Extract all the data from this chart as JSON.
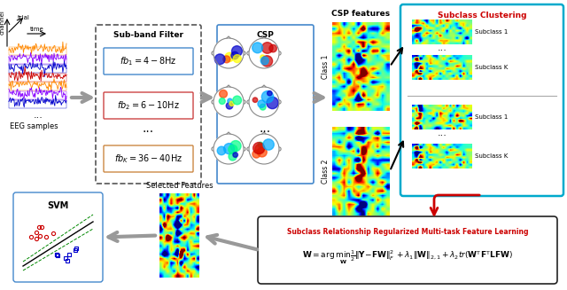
{
  "title": "",
  "bg_color": "#ffffff",
  "eeg_label": "EEG samples",
  "trial_label": "trial",
  "channel_label": "channel",
  "time_label": "time",
  "subband_title": "Sub-band Filter",
  "fb1_text": "$fb_1=4-8\\mathrm{Hz}$",
  "fb2_text": "$fb_2=6-10\\mathrm{Hz}$",
  "fbK_text": "$fb_K=36-40\\mathrm{Hz}$",
  "csp_title": "CSP",
  "csp_features_title": "CSP features",
  "class1_label": "Class 1",
  "class2_label": "Class 2",
  "subclass_cluster_title": "Subclass Clustering",
  "subclass1_label": "Subclass 1",
  "subclassK_label": "Subclass K",
  "selected_features_label": "Selected Features",
  "svm_label": "SVM",
  "formula_title": "Subclass Relationship Regularized Multi-task Feature Learning",
  "formula_text": "$\\mathbf{W}=\\arg\\min_{\\mathbf{W}}\\frac{1}{2}\\|\\mathbf{Y}-\\mathbf{FW}\\|_F^2+\\lambda_1\\|\\mathbf{W}\\|_{2,1}+\\lambda_2 tr(\\mathbf{W}^\\mathsf{T}\\mathbf{F}^\\mathsf{T}\\mathbf{LFW})$",
  "arrow_color": "#555555",
  "red_color": "#cc0000",
  "subclass_border_color": "#00aacc",
  "formula_border_color": "#222222",
  "subband_border_color": "#555555",
  "csp_border_color": "#4488cc",
  "eeg_colors": [
    "#ff8800",
    "#8800ff",
    "#0000cc",
    "#cc0000",
    "#ff8800",
    "#8800ff",
    "#0000cc"
  ],
  "box_fill": "#f5f5f5"
}
